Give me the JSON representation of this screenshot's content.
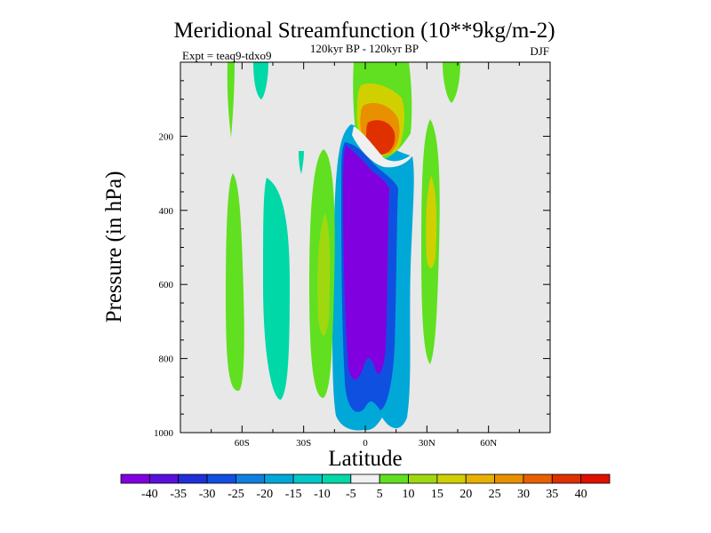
{
  "chart_data": {
    "type": "contour",
    "title": "Meridional Streamfunction (10**9kg/m-2)",
    "subtitle": "120kyr BP - 120kyr BP",
    "left_label": "Expt = teaq9-tdxo9",
    "right_label": "DJF",
    "xlabel": "Latitude",
    "ylabel": "Pressure (in hPa)",
    "xlim": [
      -90,
      90
    ],
    "ylim": [
      0,
      1000
    ],
    "x_ticks": [
      {
        "value": -60,
        "label": "60S"
      },
      {
        "value": -30,
        "label": "30S"
      },
      {
        "value": 0,
        "label": "0"
      },
      {
        "value": 30,
        "label": "30N"
      },
      {
        "value": 60,
        "label": "60N"
      }
    ],
    "y_ticks": [
      {
        "value": 200,
        "label": "200"
      },
      {
        "value": 400,
        "label": "400"
      },
      {
        "value": 600,
        "label": "600"
      },
      {
        "value": 800,
        "label": "800"
      },
      {
        "value": 1000,
        "label": "1000"
      }
    ],
    "background_color": "#e8e8e8",
    "colorbar": {
      "labels": [
        "-40",
        "-35",
        "-30",
        "-25",
        "-20",
        "-15",
        "-10",
        "-5",
        "5",
        "10",
        "15",
        "20",
        "25",
        "30",
        "35",
        "40"
      ],
      "colors": [
        "#8000e0",
        "#5a10dd",
        "#2030d8",
        "#1050e0",
        "#1080e0",
        "#00a8d8",
        "#00c8c8",
        "#00d8a8",
        "#f0f0f0",
        "#60e020",
        "#a0d810",
        "#d0d000",
        "#e8b000",
        "#e89000",
        "#e86000",
        "#e03000",
        "#e01000"
      ]
    },
    "regions": [
      {
        "name": "sh-polar-cell",
        "level": 10,
        "lat": [
          -68,
          -60
        ],
        "p": [
          290,
          890
        ]
      },
      {
        "name": "sh-polar-upper",
        "level": 10,
        "lat": [
          -68,
          -66
        ],
        "p": [
          0,
          200
        ]
      },
      {
        "name": "sh-ferrel-upper",
        "level": -10,
        "lat": [
          -56,
          -46
        ],
        "p": [
          0,
          120
        ]
      },
      {
        "name": "sh-ferrel-cell",
        "level": -10,
        "lat": [
          -50,
          -37
        ],
        "p": [
          300,
          890
        ]
      },
      {
        "name": "sh-hadley-cell",
        "level": 10,
        "lat": [
          -27,
          -14
        ],
        "p": [
          160,
          880
        ]
      },
      {
        "name": "sh-hadley-core",
        "level": 15,
        "lat": [
          -24,
          -18
        ],
        "p": [
          340,
          700
        ]
      },
      {
        "name": "winter-hadley-outer",
        "level": -10,
        "lat": [
          -12,
          22
        ],
        "p": [
          170,
          990
        ]
      },
      {
        "name": "winter-hadley-ring",
        "level": -25,
        "lat": [
          -9,
          14
        ],
        "p": [
          190,
          920
        ]
      },
      {
        "name": "winter-hadley-core",
        "level": -40,
        "lat": [
          -7,
          9
        ],
        "p": [
          205,
          880
        ]
      },
      {
        "name": "upper-positive-cell",
        "level": 10,
        "lat": [
          -4,
          22
        ],
        "p": [
          0,
          195
        ]
      },
      {
        "name": "upper-positive-core",
        "level": 40,
        "lat": [
          3,
          14
        ],
        "p": [
          140,
          190
        ]
      },
      {
        "name": "nh-hadley-cell",
        "level": 10,
        "lat": [
          28,
          38
        ],
        "p": [
          110,
          820
        ]
      },
      {
        "name": "nh-hadley-core",
        "level": 20,
        "lat": [
          30,
          35
        ],
        "p": [
          280,
          500
        ]
      },
      {
        "name": "nh-upper-branch",
        "level": 10,
        "lat": [
          37,
          47
        ],
        "p": [
          0,
          130
        ]
      }
    ]
  }
}
